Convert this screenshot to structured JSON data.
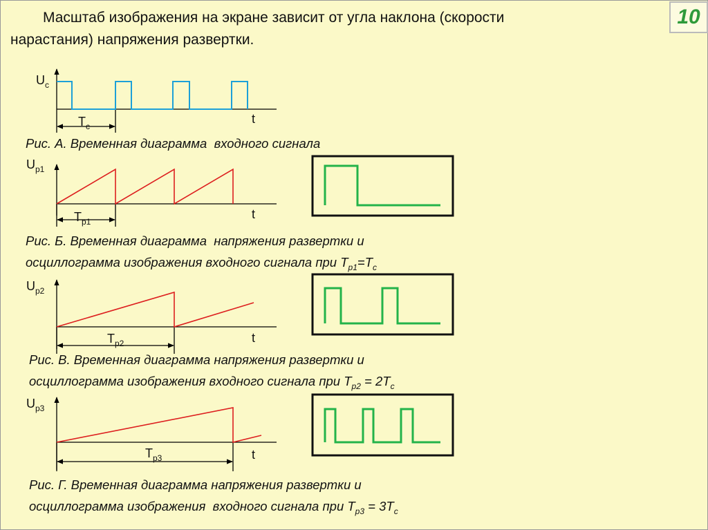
{
  "header": {
    "lines": [
      "Масштаб изображения на экране зависит от угла наклона (скорости",
      "нарастания) напряжения развертки."
    ],
    "page_number": "10"
  },
  "figures": [
    {
      "y_label": {
        "text": "U",
        "sub": "c"
      },
      "period_label": {
        "text": "T",
        "sub": "c"
      },
      "x_label": "t",
      "caption": [
        [
          {
            "text": "Рис. А. Временная диаграмма  входного сигнала"
          }
        ]
      ]
    },
    {
      "y_label": {
        "text": "U",
        "sub": "р1"
      },
      "period_label": {
        "text": "T",
        "sub": "р1"
      },
      "x_label": "t",
      "caption": [
        [
          {
            "text": "Рис. Б. Временная диаграмма  напряжения развертки и"
          }
        ],
        [
          {
            "text": "осциллограмма изображения входного сигнала при T"
          },
          {
            "sub": "р1"
          },
          {
            "text": "=T"
          },
          {
            "sub": "c"
          }
        ]
      ]
    },
    {
      "y_label": {
        "text": "U",
        "sub": "р2"
      },
      "period_label": {
        "text": "T",
        "sub": "р2"
      },
      "x_label": "t",
      "caption": [
        [
          {
            "text": "Рис. В. Временная диаграмма напряжения развертки и"
          }
        ],
        [
          {
            "text": "осциллограмма изображения входного сигнала при T"
          },
          {
            "sub": "р2"
          },
          {
            "text": " = 2T"
          },
          {
            "sub": "c"
          }
        ]
      ]
    },
    {
      "y_label": {
        "text": "U",
        "sub": "р3"
      },
      "period_label": {
        "text": "T",
        "sub": "р3"
      },
      "x_label": "t",
      "caption": [
        [
          {
            "text": "Рис. Г. Временная диаграмма напряжения развертки и"
          }
        ],
        [
          {
            "text": "осциллограмма изображения  входного сигнала при T"
          },
          {
            "sub": "р3"
          },
          {
            "text": " = 3T"
          },
          {
            "sub": "c"
          }
        ]
      ]
    }
  ]
}
